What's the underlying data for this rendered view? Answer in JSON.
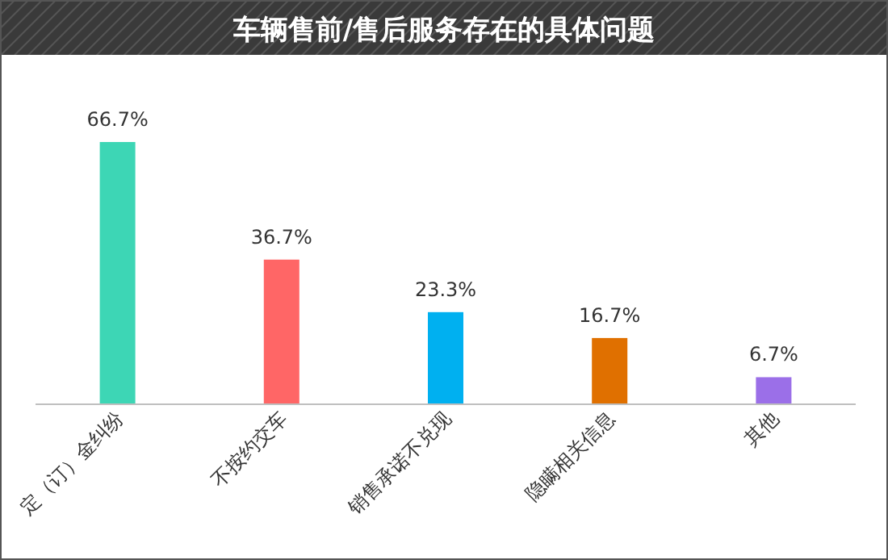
{
  "chart_data": {
    "type": "bar",
    "title": "车辆售前/售后服务存在的具体问题",
    "categories": [
      "定（订）金纠纷",
      "不按约交车",
      "销售承诺不兑现",
      "隐瞒相关信息",
      "其他"
    ],
    "values": [
      66.7,
      36.7,
      23.3,
      16.7,
      6.7
    ],
    "value_labels": [
      "66.7%",
      "36.7%",
      "23.3%",
      "16.7%",
      "6.7%"
    ],
    "colors": [
      "#3dd6b5",
      "#ff6666",
      "#00b0f0",
      "#e07000",
      "#9b6fe8"
    ]
  }
}
